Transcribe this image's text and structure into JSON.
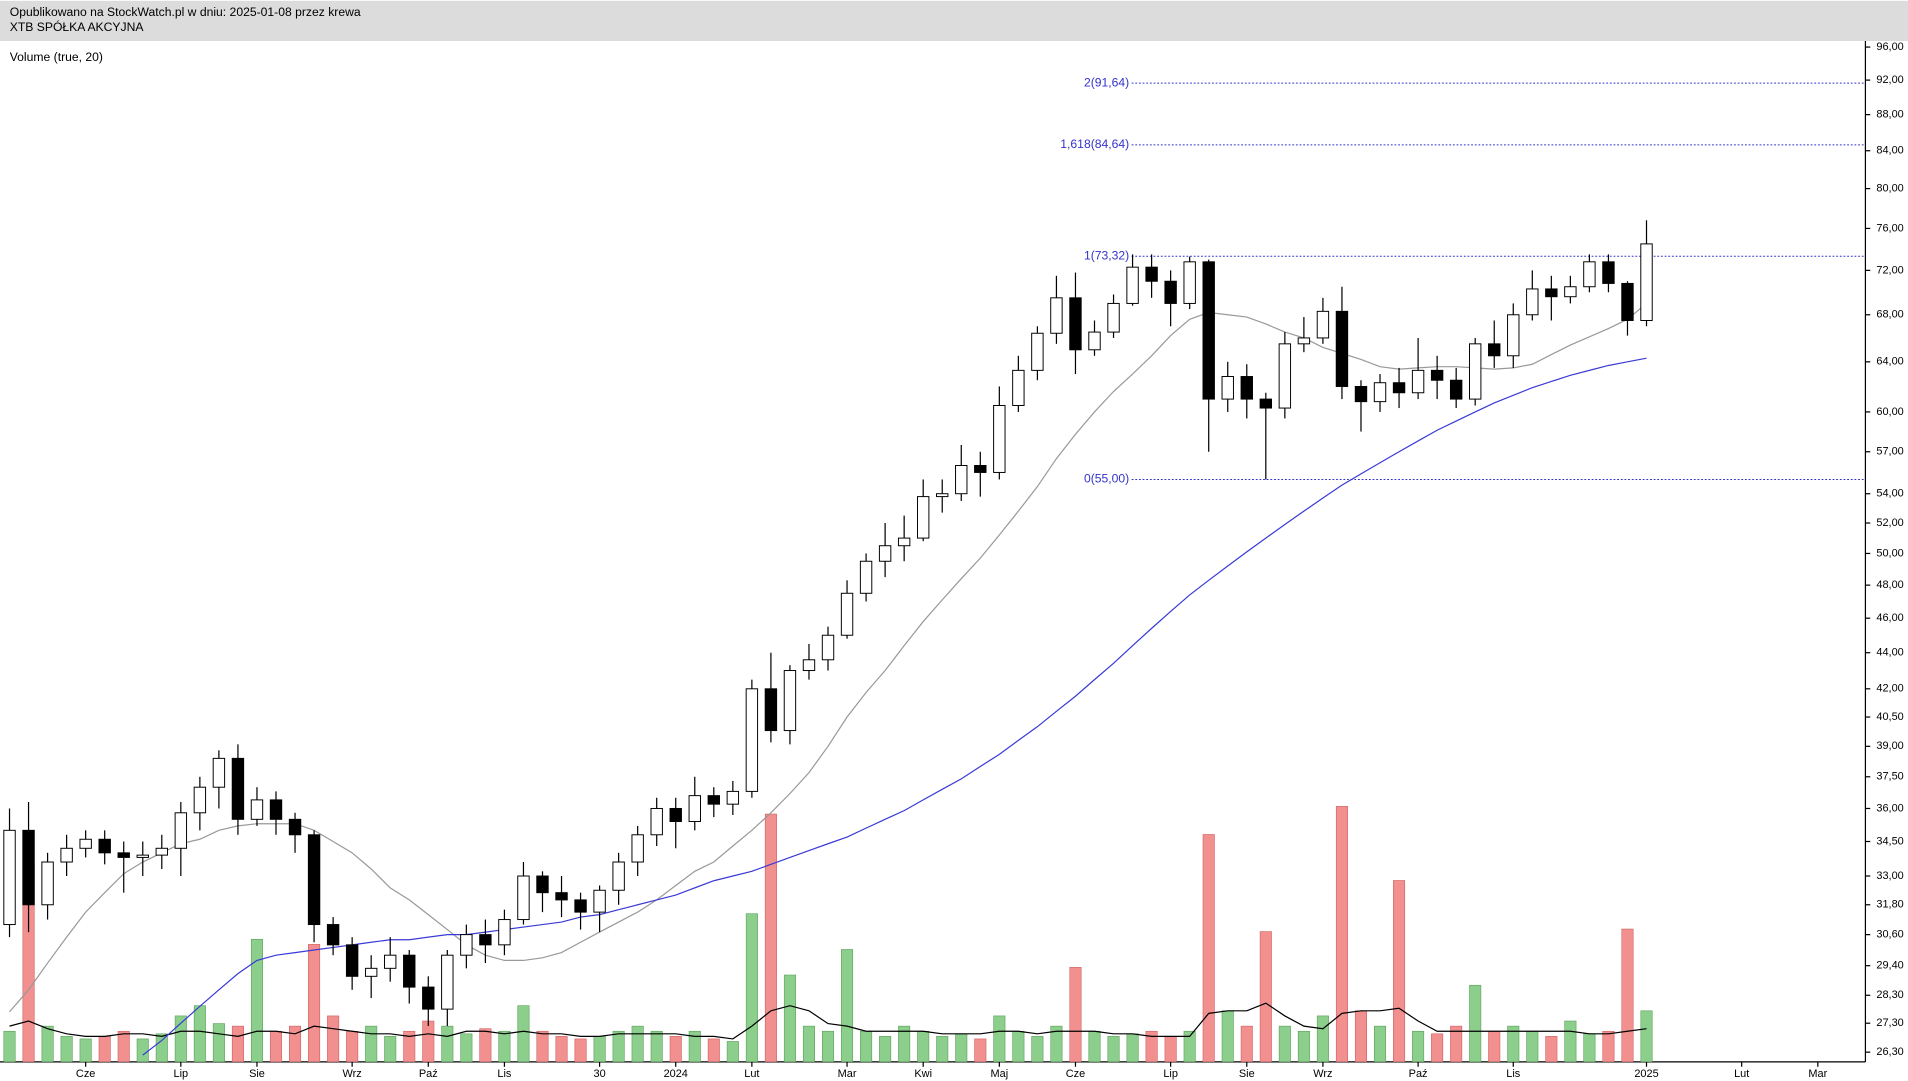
{
  "header": {
    "published": "Opublikowano na StockWatch.pl w dniu: 2025-01-08 przez krewa",
    "instrument": "XTB SPÓŁKA AKCYJNA"
  },
  "chart_data": {
    "type": "candlestick",
    "log_scale": true,
    "ylim": [
      26.3,
      96
    ],
    "yticks": [
      {
        "value": 96,
        "label": "96,00"
      },
      {
        "value": 92,
        "label": "92,00"
      },
      {
        "value": 88,
        "label": "88,00"
      },
      {
        "value": 84,
        "label": "84,00"
      },
      {
        "value": 80,
        "label": "80,00"
      },
      {
        "value": 76,
        "label": "76,00"
      },
      {
        "value": 72,
        "label": "72,00"
      },
      {
        "value": 68,
        "label": "68,00"
      },
      {
        "value": 64,
        "label": "64,00"
      },
      {
        "value": 60,
        "label": "60,00"
      },
      {
        "value": 57,
        "label": "57,00"
      },
      {
        "value": 54,
        "label": "54,00"
      },
      {
        "value": 52,
        "label": "52,00"
      },
      {
        "value": 50,
        "label": "50,00"
      },
      {
        "value": 48,
        "label": "48,00"
      },
      {
        "value": 46,
        "label": "46,00"
      },
      {
        "value": 44,
        "label": "44,00"
      },
      {
        "value": 42,
        "label": "42,00"
      },
      {
        "value": 40.5,
        "label": "40,50"
      },
      {
        "value": 39,
        "label": "39,00"
      },
      {
        "value": 37.5,
        "label": "37,50"
      },
      {
        "value": 36,
        "label": "36,00"
      },
      {
        "value": 34.5,
        "label": "34,50"
      },
      {
        "value": 33,
        "label": "33,00"
      },
      {
        "value": 31.8,
        "label": "31,80"
      },
      {
        "value": 30.6,
        "label": "30,60"
      },
      {
        "value": 29.4,
        "label": "29,40"
      },
      {
        "value": 28.3,
        "label": "28,30"
      },
      {
        "value": 27.3,
        "label": "27,30"
      },
      {
        "value": 26.3,
        "label": "26,30"
      }
    ],
    "categories": [
      null,
      null,
      null,
      null,
      "Cze",
      null,
      null,
      null,
      null,
      "Lip",
      null,
      null,
      null,
      "Sie",
      null,
      null,
      null,
      null,
      "Wrz",
      null,
      null,
      null,
      "Paź",
      null,
      null,
      null,
      "Lis",
      null,
      null,
      null,
      null,
      "30",
      null,
      null,
      null,
      "2024",
      null,
      null,
      null,
      "Lut",
      null,
      null,
      null,
      null,
      "Mar",
      null,
      null,
      null,
      "Kwi",
      null,
      null,
      null,
      "Maj",
      null,
      null,
      null,
      "Cze",
      null,
      null,
      null,
      null,
      "Lip",
      null,
      null,
      null,
      "Sie",
      null,
      null,
      null,
      "Wrz",
      null,
      null,
      null,
      null,
      "Paź",
      null,
      null,
      null,
      null,
      "Lis",
      null,
      null,
      null,
      null,
      null,
      null,
      "2025",
      null,
      null,
      null,
      null,
      "Lut",
      null,
      null,
      null,
      "Mar",
      null,
      null
    ],
    "open": [
      31,
      35,
      31.8,
      33.6,
      34.2,
      34.6,
      34,
      33.8,
      33.9,
      34.2,
      35.8,
      37,
      38.4,
      35.5,
      36.4,
      35.5,
      34.8,
      31,
      30.2,
      29,
      29.3,
      29.8,
      28.6,
      27.8,
      29.8,
      30.6,
      30.2,
      31.2,
      33,
      32.3,
      32,
      31.5,
      32.4,
      33.6,
      34.8,
      36,
      35.4,
      36.6,
      36.2,
      36.8,
      42,
      39.8,
      43,
      43.6,
      45,
      47.5,
      49.5,
      50.5,
      51,
      53.8,
      54,
      56,
      55.5,
      60.5,
      63.3,
      66.4,
      69.5,
      65,
      66.5,
      69,
      72.3,
      71,
      69,
      72.8,
      61,
      62.8,
      61,
      60.3,
      65.5,
      66,
      68.3,
      62,
      60.8,
      62.3,
      61.5,
      63.3,
      62.5,
      61,
      65.5,
      64.5,
      68,
      70.3,
      69.6,
      70.5,
      72.8,
      70.8,
      67.5,
      null,
      null,
      null,
      null,
      null,
      null,
      null,
      null,
      null,
      null,
      null
    ],
    "high": [
      36,
      36.3,
      34,
      34.8,
      35,
      35,
      34.5,
      34.5,
      34.8,
      36.3,
      37.5,
      38.8,
      39.1,
      37,
      36.8,
      35.8,
      35,
      31.3,
      30.5,
      29.8,
      30.5,
      30,
      29,
      30,
      31,
      31.2,
      31.6,
      33.6,
      33.2,
      33,
      32.3,
      32.6,
      34,
      35.2,
      36.5,
      36.5,
      37.5,
      37,
      37.3,
      42.5,
      44,
      43.3,
      44.5,
      45.5,
      48.3,
      50,
      52,
      52.5,
      55,
      55,
      57.5,
      57,
      62,
      64.5,
      67,
      71.5,
      71.8,
      67.5,
      69.8,
      73.5,
      73.5,
      72,
      73.3,
      73,
      64,
      63.8,
      61.5,
      66.5,
      67.8,
      69.5,
      70.5,
      62.5,
      63,
      63.5,
      66,
      64.5,
      63.5,
      66,
      67.5,
      69,
      72,
      71.5,
      71.5,
      73.5,
      73.5,
      71,
      76.8,
      null,
      null,
      null,
      null,
      null,
      null,
      null,
      null,
      null,
      null,
      null
    ],
    "low": [
      30.5,
      30.7,
      31.2,
      33,
      33.8,
      33.5,
      32.3,
      33,
      33.3,
      33,
      35,
      36,
      34.8,
      35.2,
      34.8,
      34,
      30.3,
      29.8,
      28.5,
      28.2,
      28.8,
      28,
      27.2,
      27.2,
      29.3,
      29.5,
      29.8,
      31,
      31.5,
      31.3,
      30.8,
      30.7,
      31.8,
      33,
      34.3,
      34.2,
      35,
      35.6,
      35.7,
      36.5,
      39.2,
      39.1,
      42.5,
      43,
      44.8,
      47,
      48.5,
      49.5,
      50.8,
      52.7,
      53.5,
      53.8,
      55,
      60,
      62.5,
      65.5,
      63,
      64.5,
      66,
      68.8,
      69.5,
      67,
      68.5,
      57,
      60,
      59.5,
      55,
      59.5,
      64.8,
      65.5,
      61,
      58.5,
      60,
      60.3,
      61,
      61,
      60.3,
      60.5,
      63.5,
      63.5,
      67.5,
      67.5,
      69,
      70,
      70,
      66.2,
      67,
      null,
      null,
      null,
      null,
      null,
      null,
      null,
      null,
      null,
      null,
      null
    ],
    "close": [
      35,
      31.8,
      33.6,
      34.2,
      34.6,
      34,
      33.8,
      33.9,
      34.2,
      35.8,
      37,
      38.4,
      35.5,
      36.4,
      35.5,
      34.8,
      31,
      30.2,
      29,
      29.3,
      29.8,
      28.6,
      27.8,
      29.8,
      30.6,
      30.2,
      31.2,
      33,
      32.3,
      32,
      31.5,
      32.4,
      33.6,
      34.8,
      36,
      35.4,
      36.6,
      36.2,
      36.8,
      42,
      39.8,
      43,
      43.6,
      45,
      47.5,
      49.5,
      50.5,
      51,
      53.8,
      54,
      56,
      55.5,
      60.5,
      63.3,
      66.4,
      69.5,
      65,
      66.5,
      69,
      72.3,
      71,
      69,
      72.8,
      61,
      62.8,
      61,
      60.3,
      65.5,
      66,
      68.3,
      62,
      60.8,
      62.3,
      61.5,
      63.3,
      62.5,
      61,
      65.5,
      64.5,
      68,
      70.3,
      69.6,
      70.5,
      72.8,
      70.8,
      67.5,
      74.5,
      null,
      null,
      null,
      null,
      null,
      null,
      null,
      null,
      null,
      null,
      null
    ],
    "up_color": "#ffffff",
    "down_color": "#000000",
    "overlays": [
      {
        "color": "#999999",
        "values": [
          27.7,
          28.5,
          29.5,
          30.5,
          31.5,
          32.3,
          33.1,
          33.6,
          34,
          34.4,
          34.6,
          35,
          35.2,
          35.3,
          35.3,
          35.3,
          35,
          34.5,
          34,
          33.3,
          32.5,
          32,
          31.4,
          30.8,
          30.2,
          29.8,
          29.6,
          29.6,
          29.7,
          29.9,
          30.3,
          30.7,
          31.1,
          31.5,
          32,
          32.6,
          33.2,
          33.6,
          34.3,
          35,
          35.8,
          36.7,
          37.7,
          39,
          40.5,
          41.8,
          43,
          44.4,
          45.8,
          47.1,
          48.4,
          49.7,
          51.2,
          52.8,
          54.5,
          56.5,
          58.3,
          60,
          61.6,
          63,
          64.5,
          66.2,
          67.6,
          68.2,
          68,
          67.8,
          67.2,
          66.5,
          66,
          65.2,
          64.7,
          64.2,
          63.6,
          63.4,
          63.5,
          63.6,
          63.6,
          63.5,
          63.4,
          63.5,
          63.8,
          64.6,
          65.4,
          66.1,
          66.8,
          67.6,
          69,
          null,
          null,
          null,
          null,
          null,
          null,
          null,
          null,
          null,
          null,
          null
        ]
      },
      {
        "color": "#3a3ad6",
        "values": [
          null,
          null,
          null,
          null,
          null,
          null,
          null,
          26.2,
          26.7,
          27.3,
          27.9,
          28.5,
          29.1,
          29.6,
          29.8,
          29.9,
          30,
          30.1,
          30.2,
          30.3,
          30.4,
          30.4,
          30.5,
          30.6,
          30.6,
          30.7,
          30.8,
          30.9,
          31,
          31.1,
          31.3,
          31.4,
          31.6,
          31.8,
          32,
          32.2,
          32.5,
          32.8,
          33,
          33.2,
          33.5,
          33.8,
          34.1,
          34.4,
          34.7,
          35.1,
          35.5,
          35.9,
          36.4,
          36.9,
          37.4,
          38,
          38.6,
          39.3,
          40,
          40.8,
          41.6,
          42.5,
          43.4,
          44.4,
          45.4,
          46.4,
          47.4,
          48.3,
          49.2,
          50.1,
          51,
          51.9,
          52.8,
          53.7,
          54.6,
          55.4,
          56.2,
          57,
          57.8,
          58.6,
          59.3,
          60,
          60.7,
          61.3,
          61.9,
          62.4,
          62.9,
          63.3,
          63.7,
          64,
          64.3,
          null,
          null,
          null,
          null,
          null,
          null,
          null,
          null,
          null,
          null,
          null
        ]
      }
    ],
    "volume": {
      "label": "Volume (true, 20)",
      "values": [
        12,
        77,
        14,
        10,
        9,
        10,
        12,
        9,
        11,
        18,
        22,
        15,
        14,
        48,
        12,
        14,
        46,
        18,
        12,
        14,
        10,
        12,
        16,
        14,
        11,
        13,
        12,
        22,
        12,
        10,
        9,
        10,
        12,
        14,
        12,
        10,
        12,
        9,
        8,
        58,
        97,
        34,
        14,
        12,
        44,
        12,
        10,
        14,
        12,
        10,
        11,
        9,
        18,
        12,
        10,
        14,
        37,
        12,
        10,
        11,
        12,
        10,
        12,
        89,
        20,
        14,
        51,
        14,
        12,
        18,
        100,
        20,
        14,
        71,
        12,
        11,
        14,
        30,
        12,
        14,
        12,
        10,
        16,
        11,
        12,
        52,
        20,
        null,
        null,
        null,
        null,
        null,
        null,
        null,
        null,
        null,
        null,
        null
      ],
      "ma": [
        14,
        16,
        13,
        11,
        10,
        10,
        11,
        11,
        10,
        12,
        12,
        11,
        10,
        12,
        12,
        11,
        14,
        13,
        12,
        11,
        11,
        10,
        11,
        10,
        12,
        12,
        11,
        12,
        11,
        11,
        10,
        10,
        11,
        11,
        11,
        11,
        10,
        10,
        9,
        14,
        20,
        22,
        20,
        15,
        14,
        12,
        12,
        12,
        12,
        11,
        11,
        11,
        12,
        12,
        11,
        12,
        12,
        12,
        11,
        11,
        10,
        10,
        10,
        19,
        20,
        20,
        23,
        18,
        14,
        13,
        19,
        20,
        20,
        21,
        16,
        12,
        12,
        12,
        12,
        12,
        12,
        12,
        12,
        11,
        11,
        12,
        13,
        null,
        null,
        null,
        null,
        null,
        null,
        null,
        null,
        null,
        null,
        null
      ],
      "up_color": "#8ccf8c",
      "down_color": "#f29090",
      "ma_color": "#000000"
    },
    "y2lim": [
      0,
      100
    ],
    "fib_color": "#3333cc",
    "fib_levels": [
      {
        "label": "2(91,64)",
        "value": 91.64
      },
      {
        "label": "1,618(84,64)",
        "value": 84.64
      },
      {
        "label": "1(73,32)",
        "value": 73.32
      },
      {
        "label": "0(55,00)",
        "value": 55
      }
    ]
  }
}
